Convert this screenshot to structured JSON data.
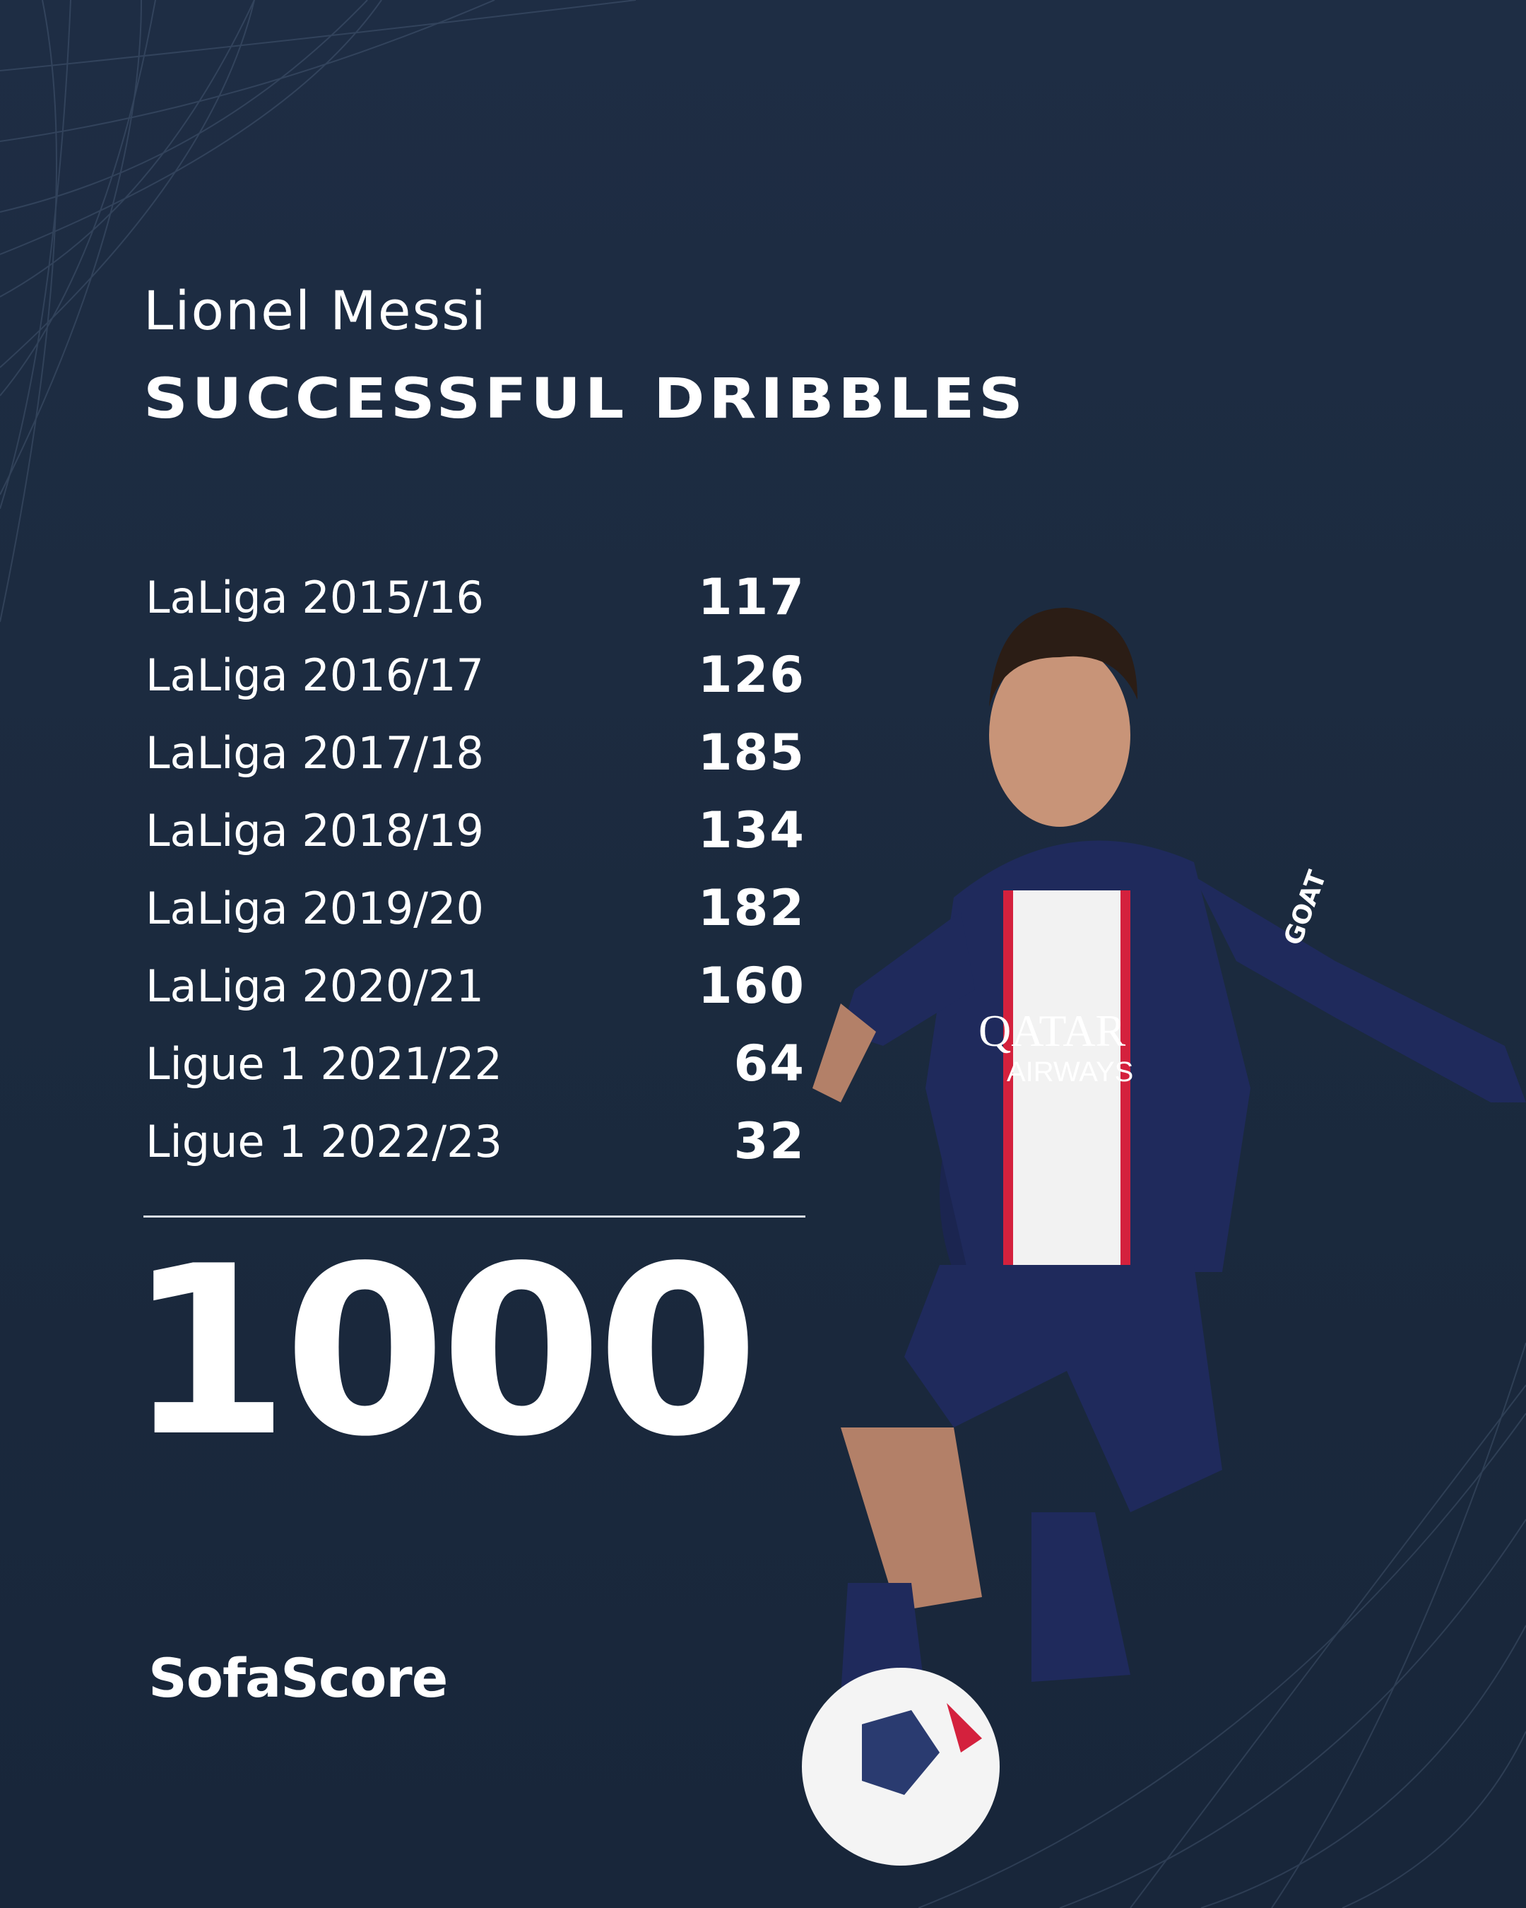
{
  "player_name": "Lionel Messi",
  "stat_title": "SUCCESSFUL DRIBBLES",
  "seasons": [
    {
      "label": "LaLiga 2015/16",
      "value": "117"
    },
    {
      "label": "LaLiga 2016/17",
      "value": "126"
    },
    {
      "label": "LaLiga 2017/18",
      "value": "185"
    },
    {
      "label": "LaLiga 2018/19",
      "value": "134"
    },
    {
      "label": "LaLiga 2019/20",
      "value": "182"
    },
    {
      "label": "LaLiga 2020/21",
      "value": "160"
    },
    {
      "label": "Ligue 1 2021/22",
      "value": "64"
    },
    {
      "label": "Ligue 1 2022/23",
      "value": "32"
    }
  ],
  "total": "1000",
  "brand": "SofaScore",
  "jersey": {
    "sponsor_line1": "QATAR",
    "sponsor_line2": "AIRWAYS",
    "sleeve": "GOAT"
  },
  "colors": {
    "background": "#1b2a3e",
    "text": "#ffffff",
    "jersey": "#1f2a5c",
    "stripe_red": "#d4213d"
  }
}
